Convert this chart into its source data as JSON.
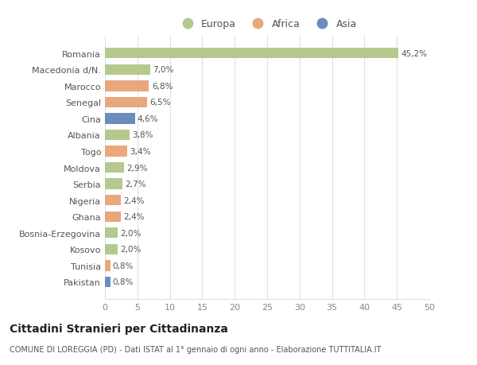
{
  "categories": [
    "Pakistan",
    "Tunisia",
    "Kosovo",
    "Bosnia-Erzegovina",
    "Ghana",
    "Nigeria",
    "Serbia",
    "Moldova",
    "Togo",
    "Albania",
    "Cina",
    "Senegal",
    "Marocco",
    "Macedonia d/N.",
    "Romania"
  ],
  "values": [
    0.8,
    0.8,
    2.0,
    2.0,
    2.4,
    2.4,
    2.7,
    2.9,
    3.4,
    3.8,
    4.6,
    6.5,
    6.8,
    7.0,
    45.2
  ],
  "labels": [
    "0,8%",
    "0,8%",
    "2,0%",
    "2,0%",
    "2,4%",
    "2,4%",
    "2,7%",
    "2,9%",
    "3,4%",
    "3,8%",
    "4,6%",
    "6,5%",
    "6,8%",
    "7,0%",
    "45,2%"
  ],
  "colors": [
    "#6b8cbd",
    "#e8a87c",
    "#b5c98e",
    "#b5c98e",
    "#e8a87c",
    "#e8a87c",
    "#b5c98e",
    "#b5c98e",
    "#e8a87c",
    "#b5c98e",
    "#6b8cbd",
    "#e8a87c",
    "#e8a87c",
    "#b5c98e",
    "#b5c98e"
  ],
  "legend_labels": [
    "Europa",
    "Africa",
    "Asia"
  ],
  "legend_colors": [
    "#b5c98e",
    "#e8a87c",
    "#6b8cbd"
  ],
  "title": "Cittadini Stranieri per Cittadinanza",
  "subtitle": "COMUNE DI LOREGGIA (PD) - Dati ISTAT al 1° gennaio di ogni anno - Elaborazione TUTTITALIA.IT",
  "xlim": [
    0,
    50
  ],
  "xticks": [
    0,
    5,
    10,
    15,
    20,
    25,
    30,
    35,
    40,
    45,
    50
  ],
  "background_color": "#ffffff",
  "grid_color": "#e0e0e0"
}
